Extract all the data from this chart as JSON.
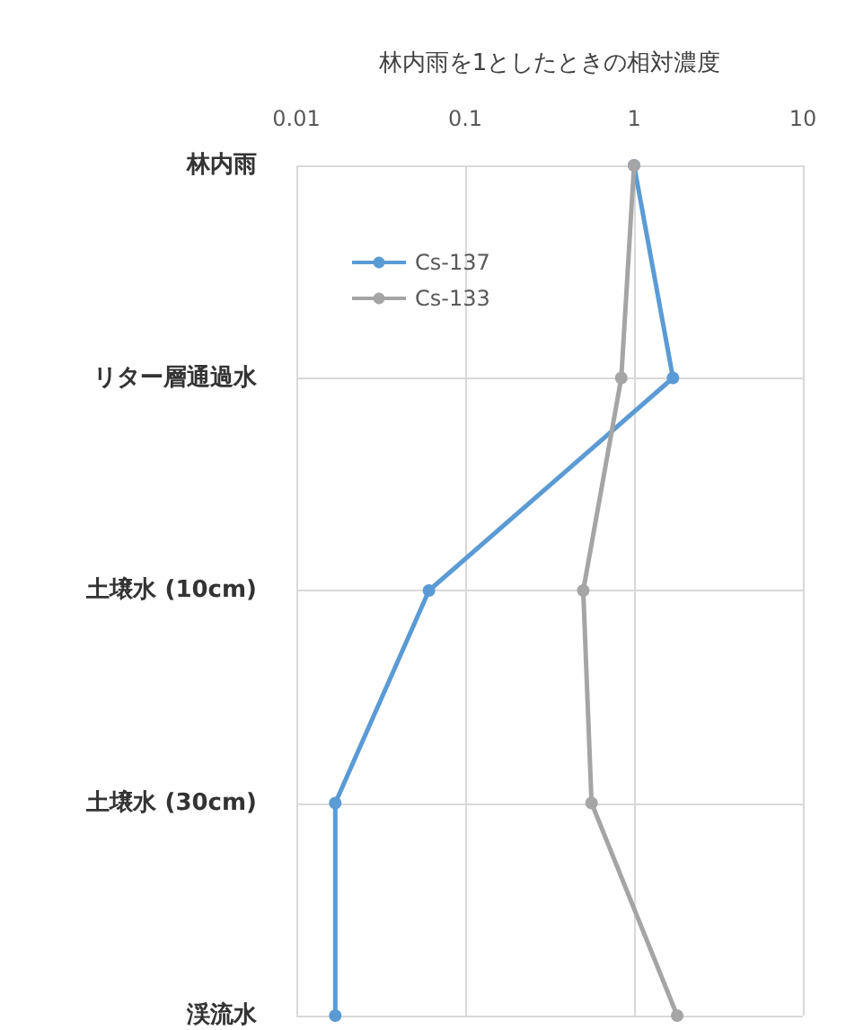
{
  "chart_data": {
    "type": "line",
    "xlabel": "林内雨を1としたときの相対濃度",
    "categories": [
      "林内雨",
      "リター層通過水",
      "土壌水 (10cm)",
      "土壌水 (30cm)",
      "渓流水"
    ],
    "series": [
      {
        "name": "Cs-137",
        "color": "#5b9bd5",
        "values": [
          1,
          1.7,
          0.061,
          0.017,
          0.017
        ]
      },
      {
        "name": "Cs-133",
        "color": "#a5a5a5",
        "values": [
          1,
          0.84,
          0.5,
          0.56,
          1.8
        ]
      }
    ],
    "orientation": "horizontal",
    "xlim": [
      0.01,
      10
    ],
    "xticks": [
      0.01,
      0.1,
      1,
      10
    ],
    "log": "x",
    "grid": true,
    "legend": "top left",
    "marker": "circle",
    "line_style": "solid"
  }
}
